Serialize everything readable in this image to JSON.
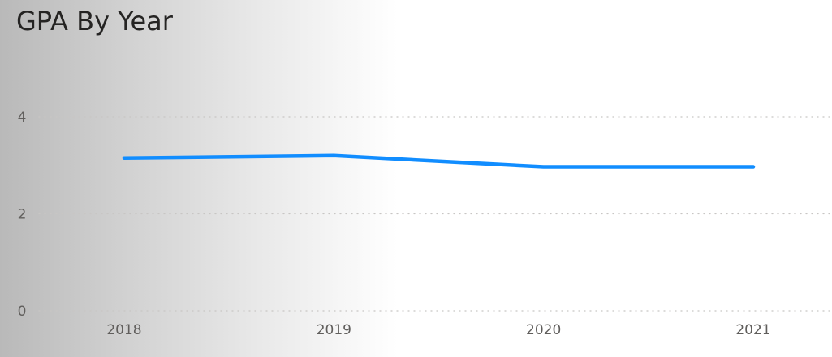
{
  "chart_data": {
    "type": "line",
    "title": "GPA By Year",
    "categories": [
      "2018",
      "2019",
      "2020",
      "2021"
    ],
    "series": [
      {
        "values": [
          3.15,
          3.2,
          2.97,
          2.97
        ],
        "color": "#118dff"
      }
    ],
    "y_ticks": [
      "0",
      "2",
      "4"
    ],
    "ylim": [
      0,
      4.4
    ],
    "grid": true,
    "legend": "none"
  }
}
